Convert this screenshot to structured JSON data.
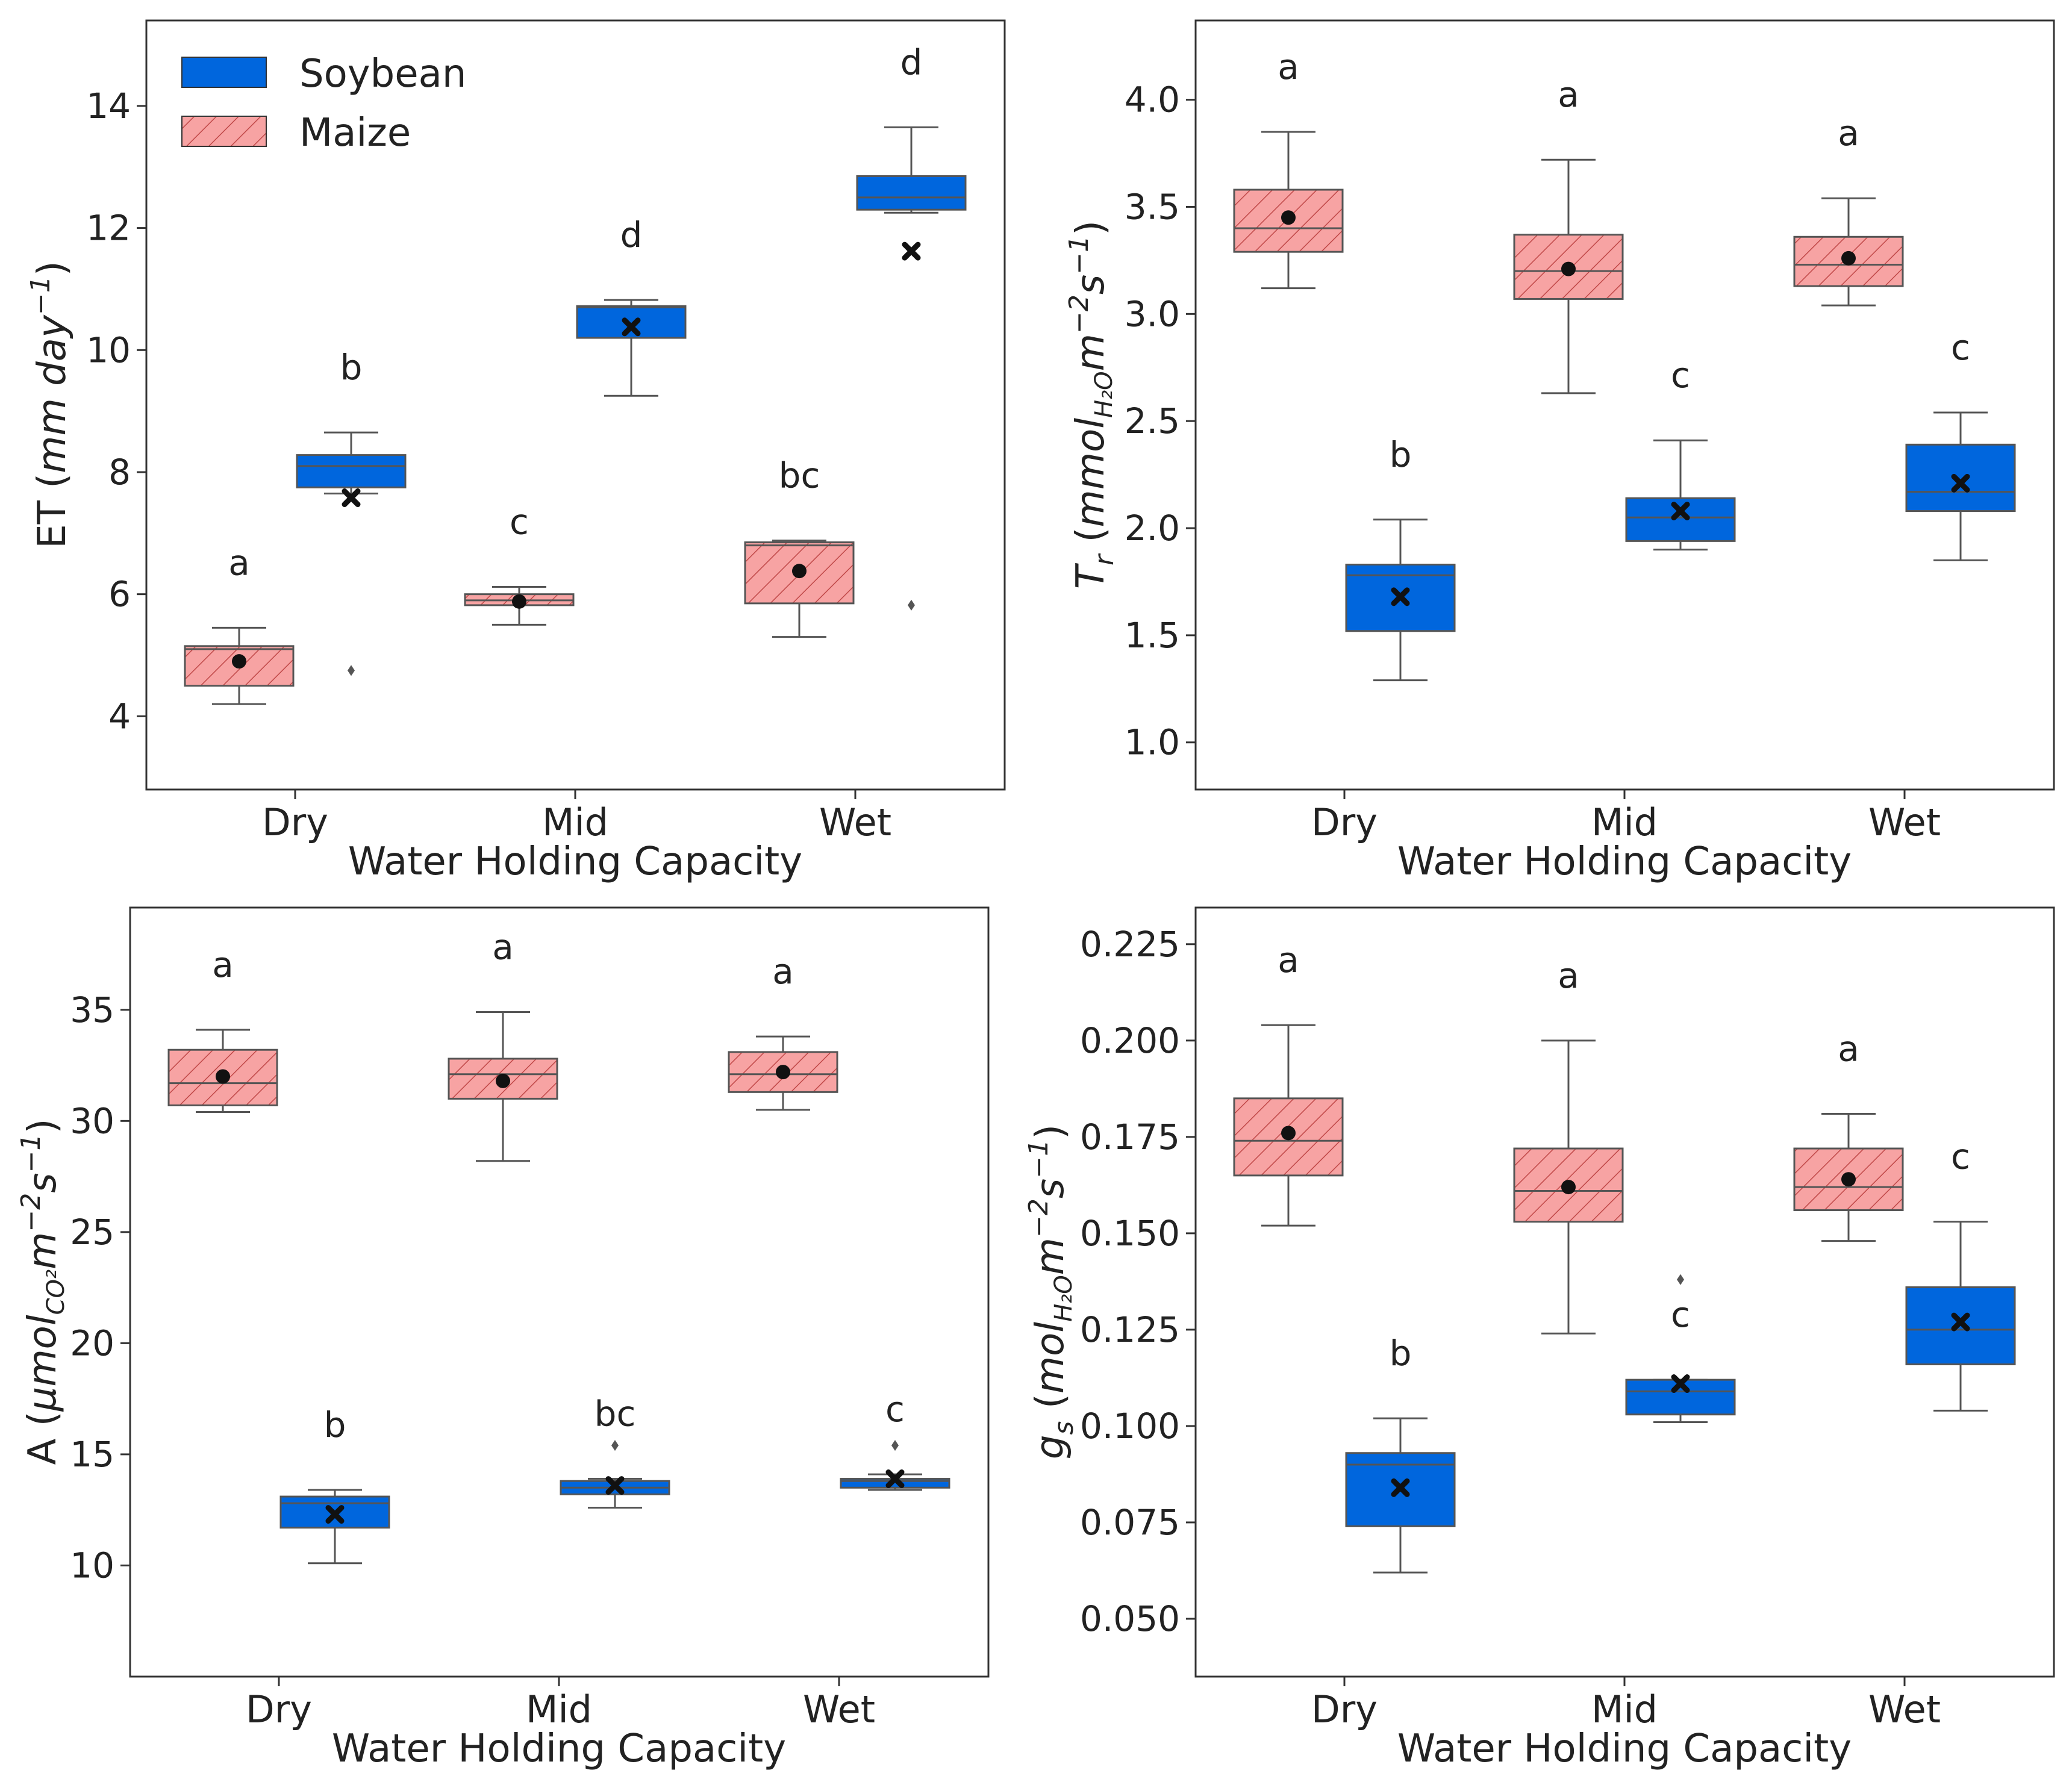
{
  "legend": {
    "soybean": "Soybean",
    "maize": "Maize"
  },
  "colors": {
    "soybean": "#0066dd",
    "maize": "#f7a3a3",
    "hatch": "#c04848",
    "frame": "#333333",
    "whisker": "#555555",
    "marker": "#111111"
  },
  "chart_data": [
    {
      "type": "box",
      "panel": "ET",
      "ylabel_base": "ET (",
      "ylabel_italic": "mm day",
      "ylabel_sup": "−1",
      "ylabel_end": ")",
      "xlabel": "Water Holding Capacity",
      "categories": [
        "Dry",
        "Mid",
        "Wet"
      ],
      "ylim": [
        2.8,
        15.4
      ],
      "yticks": [
        4,
        6,
        8,
        10,
        12,
        14
      ],
      "ytick_labels": [
        "4",
        "6",
        "8",
        "10",
        "12",
        "14"
      ],
      "series": [
        {
          "name": "Maize",
          "boxes": [
            {
              "min": 4.2,
              "q1": 4.5,
              "median": 5.1,
              "q3": 5.15,
              "max": 5.45,
              "mean": 4.9,
              "outliers": [],
              "letter": "a"
            },
            {
              "min": 5.5,
              "q1": 5.82,
              "median": 5.9,
              "q3": 6.0,
              "max": 6.12,
              "mean": 5.88,
              "outliers": [],
              "letter": "c"
            },
            {
              "min": 5.3,
              "q1": 5.85,
              "median": 6.8,
              "q3": 6.85,
              "max": 6.88,
              "mean": 6.38,
              "outliers": [],
              "letter": "bc"
            }
          ]
        },
        {
          "name": "Soybean",
          "boxes": [
            {
              "min": 7.65,
              "q1": 7.75,
              "median": 8.1,
              "q3": 8.28,
              "max": 8.65,
              "mean": 7.58,
              "outliers": [
                4.75
              ],
              "letter": "b"
            },
            {
              "min": 9.25,
              "q1": 10.2,
              "median": 10.7,
              "q3": 10.72,
              "max": 10.82,
              "mean": 10.38,
              "outliers": [],
              "letter": "d"
            },
            {
              "min": 12.25,
              "q1": 12.3,
              "median": 12.5,
              "q3": 12.85,
              "max": 13.65,
              "mean": 11.62,
              "outliers": [
                5.82
              ],
              "letter": "d"
            }
          ]
        }
      ]
    },
    {
      "type": "box",
      "panel": "Tr",
      "ylabel_base": "T",
      "ylabel_sub": "r",
      "ylabel_mid": " (",
      "ylabel_italic": "mmol",
      "ylabel_italic_sub": "H₂O",
      "ylabel_italic2": "m",
      "ylabel_sup": "−2",
      "ylabel_italic3": "s",
      "ylabel_sup2": "−1",
      "ylabel_end": ")",
      "xlabel": "Water Holding Capacity",
      "categories": [
        "Dry",
        "Mid",
        "Wet"
      ],
      "ylim": [
        0.78,
        4.37
      ],
      "yticks": [
        1.0,
        1.5,
        2.0,
        2.5,
        3.0,
        3.5,
        4.0
      ],
      "ytick_labels": [
        "1.0",
        "1.5",
        "2.0",
        "2.5",
        "3.0",
        "3.5",
        "4.0"
      ],
      "series": [
        {
          "name": "Maize",
          "boxes": [
            {
              "min": 3.12,
              "q1": 3.29,
              "median": 3.4,
              "q3": 3.58,
              "max": 3.85,
              "mean": 3.45,
              "outliers": [],
              "letter": "a"
            },
            {
              "min": 2.63,
              "q1": 3.07,
              "median": 3.2,
              "q3": 3.37,
              "max": 3.72,
              "mean": 3.21,
              "outliers": [],
              "letter": "a"
            },
            {
              "min": 3.04,
              "q1": 3.13,
              "median": 3.23,
              "q3": 3.36,
              "max": 3.54,
              "mean": 3.26,
              "outliers": [],
              "letter": "a"
            }
          ]
        },
        {
          "name": "Soybean",
          "boxes": [
            {
              "min": 1.29,
              "q1": 1.52,
              "median": 1.78,
              "q3": 1.83,
              "max": 2.04,
              "mean": 1.68,
              "outliers": [],
              "letter": "b"
            },
            {
              "min": 1.9,
              "q1": 1.94,
              "median": 2.05,
              "q3": 2.14,
              "max": 2.41,
              "mean": 2.08,
              "outliers": [],
              "letter": "c"
            },
            {
              "min": 1.85,
              "q1": 2.08,
              "median": 2.17,
              "q3": 2.39,
              "max": 2.54,
              "mean": 2.21,
              "outliers": [],
              "letter": "c"
            }
          ]
        }
      ]
    },
    {
      "type": "box",
      "panel": "A",
      "ylabel_base": "A (",
      "ylabel_italic": "μmol",
      "ylabel_italic_sub": "CO²",
      "ylabel_italic2": "m",
      "ylabel_sup": "−2",
      "ylabel_italic3": "s",
      "ylabel_sup2": "−1",
      "ylabel_end": ")",
      "xlabel": "Water Holding Capacity",
      "categories": [
        "Dry",
        "Mid",
        "Wet"
      ],
      "ylim": [
        5.0,
        39.6
      ],
      "yticks": [
        10,
        15,
        20,
        25,
        30,
        35
      ],
      "ytick_labels": [
        "10",
        "15",
        "20",
        "25",
        "30",
        "35"
      ],
      "series": [
        {
          "name": "Maize",
          "boxes": [
            {
              "min": 30.4,
              "q1": 30.7,
              "median": 31.7,
              "q3": 33.2,
              "max": 34.1,
              "mean": 32.0,
              "outliers": [],
              "letter": "a"
            },
            {
              "min": 28.2,
              "q1": 31.0,
              "median": 32.1,
              "q3": 32.8,
              "max": 34.9,
              "mean": 31.8,
              "outliers": [],
              "letter": "a"
            },
            {
              "min": 30.5,
              "q1": 31.3,
              "median": 32.1,
              "q3": 33.1,
              "max": 33.8,
              "mean": 32.2,
              "outliers": [],
              "letter": "a"
            }
          ]
        },
        {
          "name": "Soybean",
          "boxes": [
            {
              "min": 10.1,
              "q1": 11.7,
              "median": 12.8,
              "q3": 13.1,
              "max": 13.4,
              "mean": 12.3,
              "outliers": [],
              "letter": "b"
            },
            {
              "min": 12.6,
              "q1": 13.2,
              "median": 13.5,
              "q3": 13.8,
              "max": 13.9,
              "mean": 13.6,
              "outliers": [
                15.4
              ],
              "letter": "bc"
            },
            {
              "min": 13.4,
              "q1": 13.5,
              "median": 13.8,
              "q3": 13.9,
              "max": 14.1,
              "mean": 13.9,
              "outliers": [
                15.4
              ],
              "letter": "c"
            }
          ]
        }
      ]
    },
    {
      "type": "box",
      "panel": "gs",
      "ylabel_base": "g",
      "ylabel_sub": "s",
      "ylabel_mid": " (",
      "ylabel_italic": "mol",
      "ylabel_italic_sub": "H₂O",
      "ylabel_italic2": "m",
      "ylabel_sup": "−2",
      "ylabel_italic3": "s",
      "ylabel_sup2": "−1",
      "ylabel_end": ")",
      "xlabel": "Water Holding Capacity",
      "categories": [
        "Dry",
        "Mid",
        "Wet"
      ],
      "ylim": [
        0.035,
        0.2345
      ],
      "yticks": [
        0.05,
        0.075,
        0.1,
        0.125,
        0.15,
        0.175,
        0.2,
        0.225
      ],
      "ytick_labels": [
        "0.050",
        "0.075",
        "0.100",
        "0.125",
        "0.150",
        "0.175",
        "0.200",
        "0.225"
      ],
      "series": [
        {
          "name": "Maize",
          "boxes": [
            {
              "min": 0.152,
              "q1": 0.165,
              "median": 0.174,
              "q3": 0.185,
              "max": 0.204,
              "mean": 0.176,
              "outliers": [],
              "letter": "a"
            },
            {
              "min": 0.124,
              "q1": 0.153,
              "median": 0.161,
              "q3": 0.172,
              "max": 0.2,
              "mean": 0.162,
              "outliers": [],
              "letter": "a"
            },
            {
              "min": 0.148,
              "q1": 0.156,
              "median": 0.162,
              "q3": 0.172,
              "max": 0.181,
              "mean": 0.164,
              "outliers": [],
              "letter": "a"
            }
          ]
        },
        {
          "name": "Soybean",
          "boxes": [
            {
              "min": 0.062,
              "q1": 0.074,
              "median": 0.09,
              "q3": 0.093,
              "max": 0.102,
              "mean": 0.084,
              "outliers": [],
              "letter": "b"
            },
            {
              "min": 0.101,
              "q1": 0.103,
              "median": 0.109,
              "q3": 0.112,
              "max": 0.112,
              "mean": 0.111,
              "outliers": [
                0.138
              ],
              "letter": "c"
            },
            {
              "min": 0.104,
              "q1": 0.116,
              "median": 0.125,
              "q3": 0.136,
              "max": 0.153,
              "mean": 0.127,
              "outliers": [],
              "letter": "c"
            }
          ]
        }
      ]
    }
  ]
}
